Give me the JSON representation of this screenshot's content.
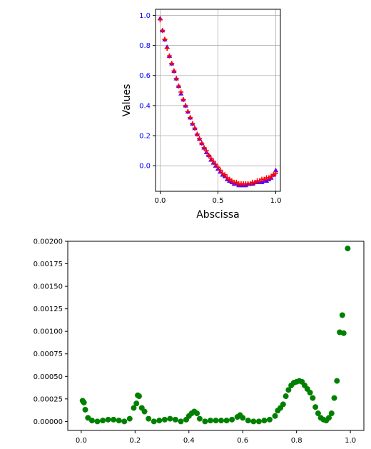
{
  "chart_data": [
    {
      "type": "scatter",
      "xlabel": "Abscissa",
      "ylabel": "Values",
      "xlim": [
        -0.04,
        1.04
      ],
      "ylim": [
        -0.17,
        1.04
      ],
      "grid": true,
      "xticks": [
        "0.0",
        "0.5",
        "1.0"
      ],
      "yticks": [
        "0.0",
        "0.2",
        "0.4",
        "0.6",
        "0.8",
        "1.0"
      ],
      "ytick_color": "#0000ff",
      "series": [
        {
          "marker": "triangle",
          "color": "#5a00ff",
          "x": [
            0.0,
            0.02,
            0.04,
            0.06,
            0.08,
            0.1,
            0.12,
            0.14,
            0.16,
            0.18,
            0.2,
            0.22,
            0.24,
            0.26,
            0.28,
            0.3,
            0.32,
            0.34,
            0.36,
            0.38,
            0.4,
            0.42,
            0.44,
            0.46,
            0.48,
            0.5,
            0.52,
            0.54,
            0.56,
            0.58,
            0.6,
            0.62,
            0.64,
            0.66,
            0.68,
            0.7,
            0.72,
            0.74,
            0.76,
            0.78,
            0.8,
            0.82,
            0.84,
            0.86,
            0.88,
            0.9,
            0.92,
            0.94,
            0.96,
            0.98,
            1.0
          ],
          "y": [
            0.98,
            0.9,
            0.84,
            0.79,
            0.73,
            0.68,
            0.63,
            0.58,
            0.53,
            0.48,
            0.44,
            0.4,
            0.36,
            0.32,
            0.28,
            0.25,
            0.21,
            0.18,
            0.15,
            0.12,
            0.09,
            0.07,
            0.04,
            0.02,
            0.0,
            -0.02,
            -0.04,
            -0.06,
            -0.07,
            -0.09,
            -0.1,
            -0.11,
            -0.12,
            -0.12,
            -0.13,
            -0.13,
            -0.13,
            -0.13,
            -0.12,
            -0.12,
            -0.12,
            -0.11,
            -0.11,
            -0.11,
            -0.11,
            -0.1,
            -0.1,
            -0.09,
            -0.08,
            -0.06,
            -0.03
          ]
        },
        {
          "marker": "plus",
          "color": "#ff0000",
          "x": [
            0.0,
            0.02,
            0.04,
            0.06,
            0.08,
            0.1,
            0.12,
            0.14,
            0.16,
            0.18,
            0.2,
            0.22,
            0.24,
            0.26,
            0.28,
            0.3,
            0.32,
            0.34,
            0.36,
            0.38,
            0.4,
            0.42,
            0.44,
            0.46,
            0.48,
            0.5,
            0.52,
            0.54,
            0.56,
            0.58,
            0.6,
            0.62,
            0.64,
            0.66,
            0.68,
            0.7,
            0.72,
            0.74,
            0.76,
            0.78,
            0.8,
            0.82,
            0.84,
            0.86,
            0.88,
            0.9,
            0.92,
            0.94,
            0.96,
            0.98,
            1.0
          ],
          "y": [
            0.97,
            0.9,
            0.84,
            0.78,
            0.73,
            0.68,
            0.63,
            0.58,
            0.53,
            0.49,
            0.44,
            0.4,
            0.36,
            0.32,
            0.28,
            0.25,
            0.21,
            0.18,
            0.15,
            0.12,
            0.1,
            0.07,
            0.05,
            0.03,
            0.01,
            -0.01,
            -0.03,
            -0.05,
            -0.06,
            -0.08,
            -0.09,
            -0.1,
            -0.11,
            -0.11,
            -0.12,
            -0.12,
            -0.12,
            -0.12,
            -0.12,
            -0.12,
            -0.11,
            -0.11,
            -0.1,
            -0.1,
            -0.09,
            -0.09,
            -0.08,
            -0.08,
            -0.07,
            -0.06,
            -0.05
          ]
        }
      ]
    },
    {
      "type": "scatter",
      "xlim": [
        -0.05,
        1.05
      ],
      "ylim": [
        -0.0001,
        0.002
      ],
      "grid": false,
      "xticks": [
        "0.0",
        "0.2",
        "0.4",
        "0.6",
        "0.8",
        "1.0"
      ],
      "yticks": [
        "0.00000",
        "0.00025",
        "0.00050",
        "0.00075",
        "0.00100",
        "0.00125",
        "0.00150",
        "0.00175",
        "0.00200"
      ],
      "series": [
        {
          "marker": "circle",
          "color": "#008000",
          "x": [
            0.005,
            0.01,
            0.015,
            0.025,
            0.04,
            0.06,
            0.08,
            0.1,
            0.12,
            0.14,
            0.16,
            0.18,
            0.195,
            0.205,
            0.21,
            0.215,
            0.225,
            0.235,
            0.25,
            0.27,
            0.29,
            0.31,
            0.33,
            0.35,
            0.37,
            0.39,
            0.4,
            0.41,
            0.42,
            0.43,
            0.44,
            0.46,
            0.48,
            0.5,
            0.52,
            0.54,
            0.56,
            0.58,
            0.59,
            0.6,
            0.62,
            0.64,
            0.66,
            0.68,
            0.7,
            0.72,
            0.73,
            0.74,
            0.75,
            0.76,
            0.77,
            0.78,
            0.79,
            0.8,
            0.81,
            0.82,
            0.83,
            0.84,
            0.85,
            0.86,
            0.87,
            0.88,
            0.89,
            0.9,
            0.91,
            0.92,
            0.93,
            0.94,
            0.95,
            0.96,
            0.97,
            0.975,
            0.99
          ],
          "y": [
            0.00023,
            0.00021,
            0.00013,
            4e-05,
            1e-05,
            0.0,
            1e-05,
            2e-05,
            2e-05,
            1e-05,
            0.0,
            3e-05,
            0.00015,
            0.0002,
            0.00029,
            0.00028,
            0.00015,
            0.00011,
            3e-05,
            0.0,
            1e-05,
            2e-05,
            3e-05,
            2e-05,
            0.0,
            2e-05,
            6e-05,
            9e-05,
            0.00011,
            9e-05,
            3e-05,
            0.0,
            1e-05,
            1e-05,
            1e-05,
            1e-05,
            2e-05,
            5e-05,
            7e-05,
            4e-05,
            1e-05,
            0.0,
            0.0,
            1e-05,
            2e-05,
            6e-05,
            0.00012,
            0.00015,
            0.00019,
            0.00028,
            0.00035,
            0.0004,
            0.00043,
            0.00044,
            0.00045,
            0.00044,
            0.0004,
            0.00036,
            0.00032,
            0.00026,
            0.00016,
            9e-05,
            4e-05,
            2e-05,
            1e-05,
            4e-05,
            9e-05,
            0.00026,
            0.00045,
            0.00099,
            0.00118,
            0.00098,
            0.00192
          ]
        }
      ]
    }
  ]
}
